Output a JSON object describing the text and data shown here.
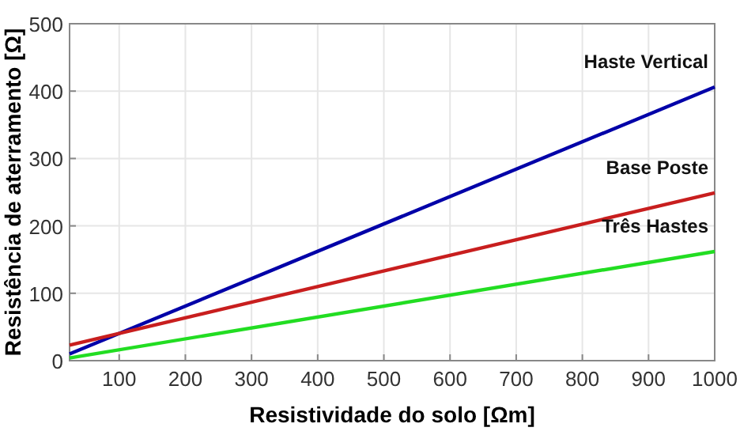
{
  "chart_data": {
    "type": "line",
    "xlabel": "Resistividade do solo [Ωm]",
    "ylabel": "Resistência de aterramento [Ω]",
    "x": [
      25,
      1000
    ],
    "series": [
      {
        "name": "Haste Vertical",
        "color": "#0000a8",
        "values": [
          10,
          406
        ]
      },
      {
        "name": "Base Poste",
        "color": "#c81e1e",
        "values": [
          23,
          249
        ]
      },
      {
        "name": "Três Hastes",
        "color": "#22dd22",
        "values": [
          4,
          162
        ]
      }
    ],
    "xlim": [
      25,
      1000
    ],
    "xticks": [
      100,
      200,
      300,
      400,
      500,
      600,
      700,
      800,
      900,
      1000
    ],
    "ylim": [
      0,
      500
    ],
    "yticks": [
      0,
      100,
      200,
      300,
      400,
      500
    ],
    "grid": true,
    "marker": "none",
    "line_style": "solid",
    "legend": false
  }
}
